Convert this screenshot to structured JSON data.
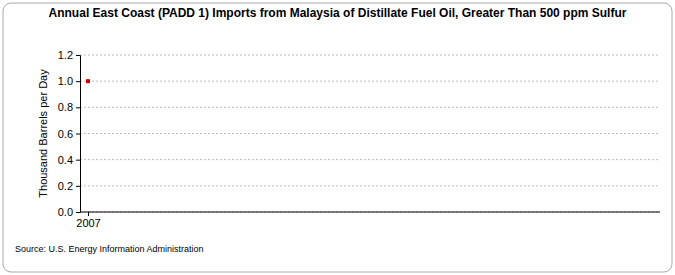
{
  "chart_data": {
    "type": "line",
    "title": "Annual East Coast (PADD 1) Imports from Malaysia of Distillate Fuel Oil, Greater Than 500 ppm Sulfur",
    "y_label": "Thousand Barrels per Day",
    "source": "Source: U.S. Energy Information Administration",
    "categories": [
      "2007"
    ],
    "values": [
      1.0
    ],
    "color": "#cc0000",
    "marker": "square",
    "ylim": [
      0,
      1.2
    ],
    "yticks": [
      {
        "value": 0,
        "label": "0.0"
      },
      {
        "value": 0.2,
        "label": "0.2"
      },
      {
        "value": 0.4,
        "label": "0.4"
      },
      {
        "value": 0.6,
        "label": "0.6"
      },
      {
        "value": 0.8,
        "label": "0.8"
      },
      {
        "value": 1.0,
        "label": "1.0"
      },
      {
        "value": 1.2,
        "label": "1.2"
      }
    ],
    "grid": true
  }
}
